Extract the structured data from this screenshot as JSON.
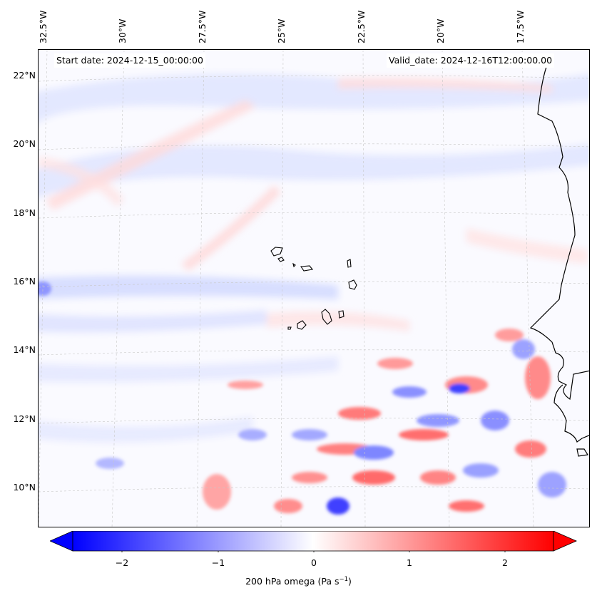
{
  "map": {
    "lon_labels": [
      "32.5°W",
      "30°W",
      "27.5°W",
      "25°W",
      "22.5°W",
      "20°W",
      "17.5°W"
    ],
    "lat_labels": [
      "22°N",
      "20°N",
      "18°N",
      "16°N",
      "14°N",
      "12°N",
      "10°N"
    ],
    "start_date": "Start date: 2024-12-15_00:00:00",
    "valid_date": "Valid_date: 2024-12-16T12:00:00.00",
    "coastline_color": "#000000",
    "gridline_color": "#cccccc"
  },
  "colorbar": {
    "ticks": [
      "−2",
      "−1",
      "0",
      "1",
      "2"
    ],
    "label_main": "200 hPa omega (Pa s",
    "label_sup": "−1",
    "label_end": ")",
    "min_color": "#0000ff",
    "mid_color": "#ffffff",
    "max_color": "#ff0000"
  }
}
